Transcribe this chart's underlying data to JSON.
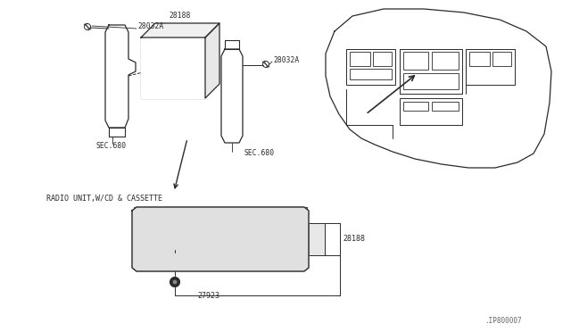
{
  "bg_color": "#ffffff",
  "line_color": "#2a2a2a",
  "text_color": "#2a2a2a",
  "fig_width": 6.4,
  "fig_height": 3.72,
  "diagram_id": ".IP800007",
  "parts": {
    "28032A_left": "28032A",
    "28188_box": "28188",
    "sec680_left": "SEC.680",
    "28032A_right": "28032A",
    "sec680_right": "SEC.680",
    "radio_label": "RADIO UNIT,W/CD & CASSETTE",
    "28188_radio": "28188",
    "27923": "27923"
  }
}
